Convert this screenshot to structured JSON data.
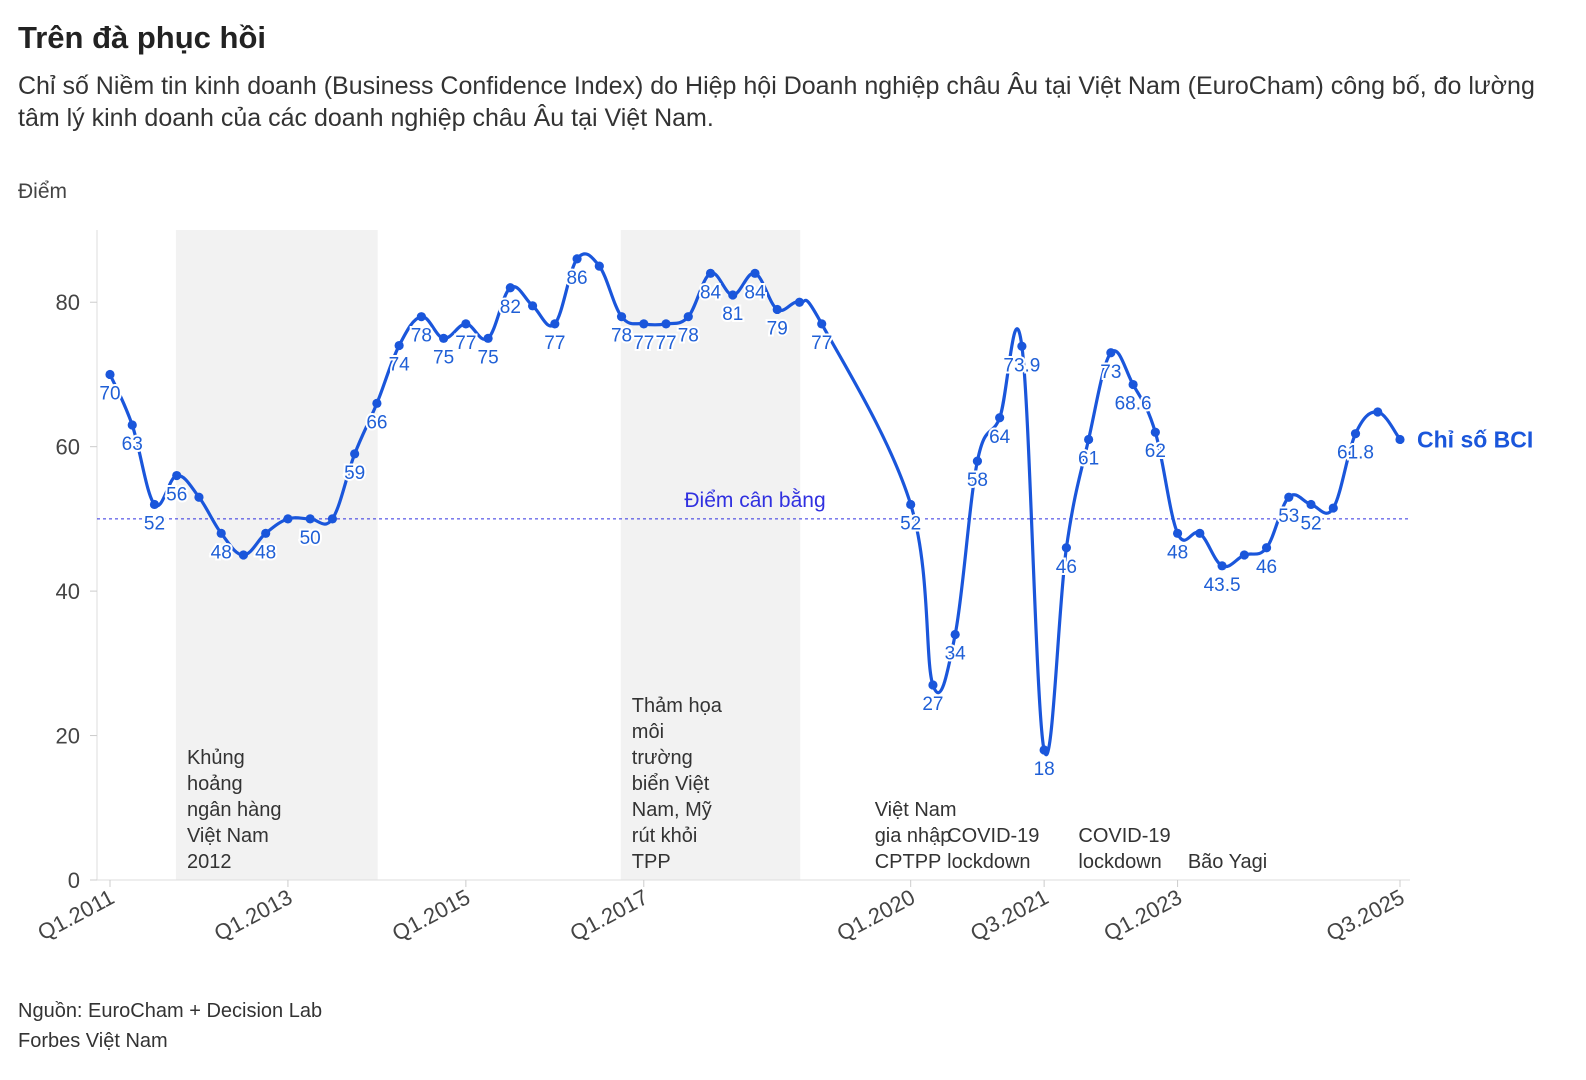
{
  "title": "Trên đà phục hồi",
  "subtitle": "Chỉ số Niềm tin kinh doanh (Business Confidence Index) do Hiệp hội Doanh nghiệp châu Âu tại Việt Nam (EuroCham) công bố, đo lường tâm lý kinh doanh của các doanh nghiệp châu Âu tại Việt Nam.",
  "y_unit": "Điểm",
  "source": [
    "Nguồn: EuroCham + Decision Lab",
    "Forbes Việt Nam"
  ],
  "colors": {
    "line": "#1a56db",
    "label": "#1f5fd6",
    "band": "#f2f2f2",
    "reference": "#3030e0"
  },
  "chart_data": {
    "type": "line",
    "series_label": "Chỉ số BCI",
    "x_tick_labels": [
      "Q1.2011",
      "Q1.2013",
      "Q1.2015",
      "Q1.2017",
      "Q1.2020",
      "Q3.2021",
      "Q1.2023",
      "Q3.2025"
    ],
    "ylim": [
      0,
      90
    ],
    "y_ticks": [
      0,
      20,
      40,
      60,
      80
    ],
    "reference_line": {
      "value": 50,
      "label": "Điểm cân bằng"
    },
    "points": [
      {
        "x": "Q1.2011",
        "y": 70,
        "label": "70"
      },
      {
        "x": "Q2.2011",
        "y": 63,
        "label": "63"
      },
      {
        "x": "Q3.2011",
        "y": 52,
        "label": "52"
      },
      {
        "x": "Q4.2011",
        "y": 56,
        "label": "56"
      },
      {
        "x": "Q1.2012",
        "y": 53,
        "label": ""
      },
      {
        "x": "Q2.2012",
        "y": 48,
        "label": "48"
      },
      {
        "x": "Q3.2012",
        "y": 45,
        "label": ""
      },
      {
        "x": "Q4.2012",
        "y": 48,
        "label": "48"
      },
      {
        "x": "Q1.2013",
        "y": 50,
        "label": ""
      },
      {
        "x": "Q2.2013",
        "y": 50,
        "label": "50"
      },
      {
        "x": "Q3.2013",
        "y": 50,
        "label": ""
      },
      {
        "x": "Q4.2013",
        "y": 59,
        "label": "59"
      },
      {
        "x": "Q1.2014",
        "y": 66,
        "label": "66"
      },
      {
        "x": "Q2.2014",
        "y": 74,
        "label": "74"
      },
      {
        "x": "Q3.2014",
        "y": 78,
        "label": "78"
      },
      {
        "x": "Q4.2014",
        "y": 75,
        "label": "75"
      },
      {
        "x": "Q1.2015",
        "y": 77,
        "label": "77"
      },
      {
        "x": "Q2.2015",
        "y": 75,
        "label": "75"
      },
      {
        "x": "Q3.2015",
        "y": 82,
        "label": "82"
      },
      {
        "x": "Q4.2015",
        "y": 79.5,
        "label": ""
      },
      {
        "x": "Q1.2016",
        "y": 77,
        "label": "77"
      },
      {
        "x": "Q2.2016",
        "y": 86,
        "label": "86"
      },
      {
        "x": "Q3.2016",
        "y": 85,
        "label": ""
      },
      {
        "x": "Q4.2016",
        "y": 78,
        "label": "78"
      },
      {
        "x": "Q1.2017",
        "y": 77,
        "label": "77"
      },
      {
        "x": "Q2.2017",
        "y": 77,
        "label": "77"
      },
      {
        "x": "Q3.2017",
        "y": 78,
        "label": "78"
      },
      {
        "x": "Q4.2017",
        "y": 84,
        "label": "84"
      },
      {
        "x": "Q1.2018",
        "y": 81,
        "label": "81"
      },
      {
        "x": "Q2.2018",
        "y": 84,
        "label": "84"
      },
      {
        "x": "Q3.2018",
        "y": 79,
        "label": "79"
      },
      {
        "x": "Q4.2018",
        "y": 80,
        "label": ""
      },
      {
        "x": "Q1.2019",
        "y": 77,
        "label": "77"
      },
      {
        "x": "Q1.2020",
        "y": 52,
        "label": "52"
      },
      {
        "x": "Q2.2020",
        "y": 27,
        "label": "27"
      },
      {
        "x": "Q3.2020",
        "y": 34,
        "label": "34"
      },
      {
        "x": "Q4.2020",
        "y": 58,
        "label": "58"
      },
      {
        "x": "Q1.2021",
        "y": 64,
        "label": "64"
      },
      {
        "x": "Q2.2021",
        "y": 73.9,
        "label": "73.9"
      },
      {
        "x": "Q3.2021",
        "y": 18,
        "label": "18"
      },
      {
        "x": "Q4.2021",
        "y": 46,
        "label": "46"
      },
      {
        "x": "Q1.2022",
        "y": 61,
        "label": "61"
      },
      {
        "x": "Q2.2022",
        "y": 73,
        "label": "73"
      },
      {
        "x": "Q3.2022",
        "y": 68.6,
        "label": "68.6"
      },
      {
        "x": "Q4.2022",
        "y": 62,
        "label": "62"
      },
      {
        "x": "Q1.2023",
        "y": 48,
        "label": "48"
      },
      {
        "x": "Q2.2023",
        "y": 48,
        "label": ""
      },
      {
        "x": "Q3.2023",
        "y": 43.5,
        "label": "43.5"
      },
      {
        "x": "Q4.2023",
        "y": 45,
        "label": ""
      },
      {
        "x": "Q1.2024",
        "y": 46,
        "label": "46"
      },
      {
        "x": "Q2.2024",
        "y": 53,
        "label": "53"
      },
      {
        "x": "Q3.2024",
        "y": 52,
        "label": "52"
      },
      {
        "x": "Q4.2024",
        "y": 51.5,
        "label": ""
      },
      {
        "x": "Q1.2025",
        "y": 61.8,
        "label": "61.8"
      },
      {
        "x": "Q2.2025",
        "y": 64.8,
        "label": ""
      },
      {
        "x": "Q3.2025",
        "y": 61,
        "label": ""
      }
    ],
    "shaded_periods": [
      {
        "from": "Q1.2012",
        "to": "Q4.2013",
        "label": [
          "Khủng",
          "hoảng",
          "ngân hàng",
          "Việt Nam",
          "2012"
        ]
      },
      {
        "from": "Q1.2017",
        "to": "Q3.2018",
        "label": [
          "Thảm họa",
          "môi",
          "trường",
          "biển Việt",
          "Nam, Mỹ",
          "rút khỏi",
          "TPP"
        ]
      }
    ],
    "annotations": [
      {
        "x": "Q1.2020",
        "label": [
          "Việt Nam",
          "gia nhập",
          "CPTPP"
        ]
      },
      {
        "x": "Q3.2020",
        "label": [
          "COVID-19",
          "lockdown"
        ]
      },
      {
        "x": "Q4.2021",
        "label": [
          "COVID-19",
          "lockdown"
        ]
      },
      {
        "x": "Q2.2023",
        "label": [
          "Bão Yagi"
        ]
      }
    ]
  }
}
